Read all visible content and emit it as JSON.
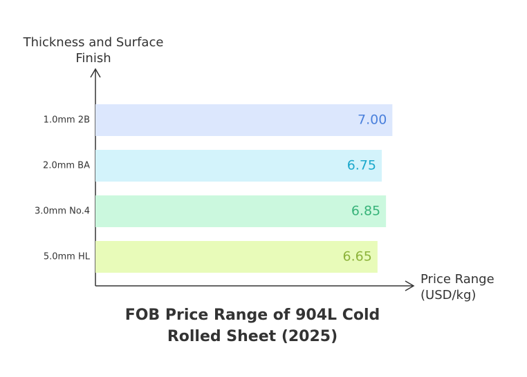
{
  "chart_data": {
    "type": "hbar",
    "title": "FOB Price Range of 904L Cold Rolled Sheet (2025)",
    "y_label": "Thickness and Surface Finish",
    "x_label": "Price Range (USD/kg)",
    "categories": [
      "1.0mm 2B",
      "2.0mm BA",
      "3.0mm No.4",
      "5.0mm HL"
    ],
    "values": [
      7.0,
      6.75,
      6.85,
      6.65
    ],
    "value_labels": [
      "7.00",
      "6.75",
      "6.85",
      "6.65"
    ],
    "colors": [
      "#dce7fd",
      "#d3f3fb",
      "#cbf8de",
      "#e8fbb9"
    ],
    "label_colors": [
      "#4a80dc",
      "#1ba8cb",
      "#38b37a",
      "#8db33b"
    ],
    "xlim": [
      0,
      7.5
    ]
  }
}
